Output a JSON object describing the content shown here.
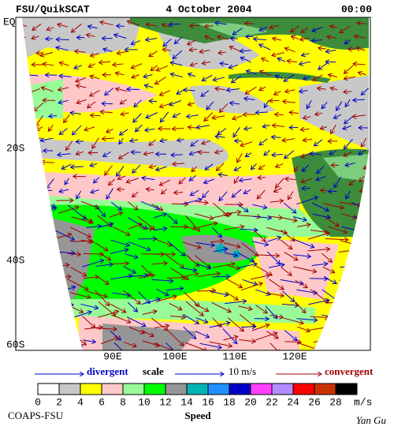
{
  "header": {
    "title": "FSU/QuikSCAT",
    "date": "4 October 2004",
    "time": "00:00"
  },
  "map": {
    "lat_labels": [
      "EQ",
      "20S",
      "40S",
      "60S"
    ],
    "lon_labels": [
      "90E",
      "100E",
      "110E",
      "120E"
    ]
  },
  "legend": {
    "divergent": "divergent",
    "scale": "scale",
    "scale_value": "10 m/s",
    "convergent": "convergent",
    "divergent_color": "#0000c8",
    "convergent_color": "#a00000"
  },
  "colorbar": {
    "ticks": [
      0,
      2,
      4,
      6,
      8,
      10,
      12,
      14,
      16,
      18,
      20,
      22,
      24,
      26,
      28
    ],
    "unit": "m/s",
    "label": "Speed",
    "colors": [
      "#ffffff",
      "#c8c8c8",
      "#ffff00",
      "#ffc8c8",
      "#98fb98",
      "#00ff00",
      "#969696",
      "#00b4b4",
      "#1e90ff",
      "#0000c8",
      "#ff40ff",
      "#b48cff",
      "#ff0000",
      "#c83200",
      "#000000"
    ]
  },
  "footer": {
    "credit": "COAPS-FSU",
    "author": "Yan Gu"
  }
}
